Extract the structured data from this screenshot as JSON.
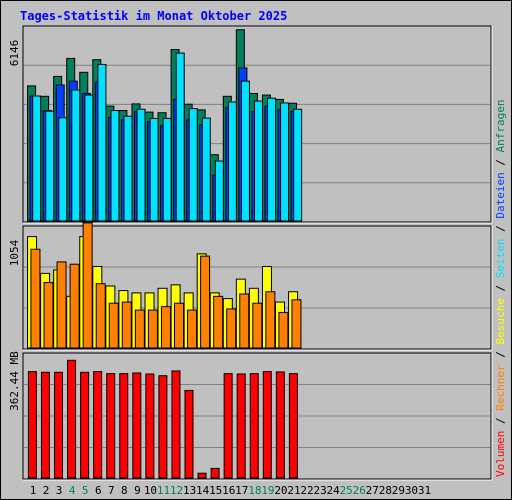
{
  "chart_data": {
    "type": "bar",
    "title": "Tages-Statistik im Monat Oktober 2025",
    "colors": {
      "title": "#0000ff",
      "anfragen": "#00805c",
      "dateien": "#0040ff",
      "seiten": "#00e0ff",
      "besuche": "#ffff00",
      "rechner": "#ff8000",
      "volumen": "#ff0000",
      "weekend_label": "#00805c"
    },
    "categories": [
      "1",
      "2",
      "3",
      "4",
      "5",
      "6",
      "7",
      "8",
      "9",
      "10",
      "11",
      "12",
      "13",
      "14",
      "15",
      "16",
      "17",
      "18",
      "19",
      "20",
      "21",
      "22",
      "23",
      "24",
      "25",
      "26",
      "27",
      "28",
      "29",
      "30",
      "31"
    ],
    "weekend_days": [
      "4",
      "5",
      "11",
      "12",
      "18",
      "19",
      "25",
      "26"
    ],
    "legend": [
      "Volumen",
      "Rechner",
      "Besuche",
      "Seiten",
      "Dateien",
      "Anfragen"
    ],
    "legend_separator": " / ",
    "panels": [
      {
        "name": "requests",
        "ymax": 6146,
        "ylabel": "6146",
        "series": [
          {
            "name": "Anfragen",
            "values": [
              4280,
              3950,
              4580,
              5150,
              4710,
              5110,
              3640,
              3500,
              3710,
              3450,
              3430,
              5430,
              3700,
              3520,
              2100,
              3950,
              6060,
              4040,
              3990,
              3850,
              3730,
              null,
              null,
              null,
              null,
              null,
              null,
              null,
              null,
              null,
              null
            ]
          },
          {
            "name": "Dateien",
            "values": [
              3960,
              3500,
              4310,
              4430,
              4040,
              4400,
              3280,
              3200,
              3460,
              3150,
              3020,
              3850,
              3200,
              3050,
              1450,
              3590,
              4850,
              3470,
              3640,
              3520,
              3470,
              null,
              null,
              null,
              null,
              null,
              null,
              null,
              null,
              null,
              null
            ]
          },
          {
            "name": "Seiten",
            "values": [
              3960,
              3480,
              3270,
              4150,
              3990,
              4960,
              3500,
              3320,
              3540,
              3250,
              3250,
              5320,
              3560,
              3260,
              1900,
              3770,
              4430,
              3800,
              3890,
              3740,
              3540,
              null,
              null,
              null,
              null,
              null,
              null,
              null,
              null,
              null,
              null
            ]
          }
        ]
      },
      {
        "name": "visits",
        "ymax": 1054,
        "ylabel": "1054",
        "series": [
          {
            "name": "Besuche",
            "values": [
              970,
              650,
              680,
              450,
              970,
              710,
              540,
              500,
              480,
              480,
              520,
              550,
              480,
              820,
              480,
              430,
              600,
              520,
              710,
              400,
              490,
              null,
              null,
              null,
              null,
              null,
              null,
              null,
              null,
              null,
              null
            ]
          },
          {
            "name": "Rechner",
            "values": [
              860,
              570,
              750,
              730,
              1090,
              560,
              390,
              400,
              330,
              330,
              360,
              390,
              330,
              800,
              450,
              340,
              470,
              390,
              490,
              310,
              420,
              null,
              null,
              null,
              null,
              null,
              null,
              null,
              null,
              null,
              null
            ]
          }
        ]
      },
      {
        "name": "volume",
        "ymax": 362.44,
        "ylabel": "362.44 MB",
        "series": [
          {
            "name": "Volumen",
            "values": [
              311,
              309,
              309,
              344,
              309,
              311,
              305,
              305,
              307,
              304,
              299,
              313,
              256,
              14,
              28,
              305,
              304,
              305,
              311,
              310,
              305,
              null,
              null,
              null,
              null,
              null,
              null,
              null,
              null,
              null,
              null
            ]
          }
        ]
      }
    ]
  }
}
